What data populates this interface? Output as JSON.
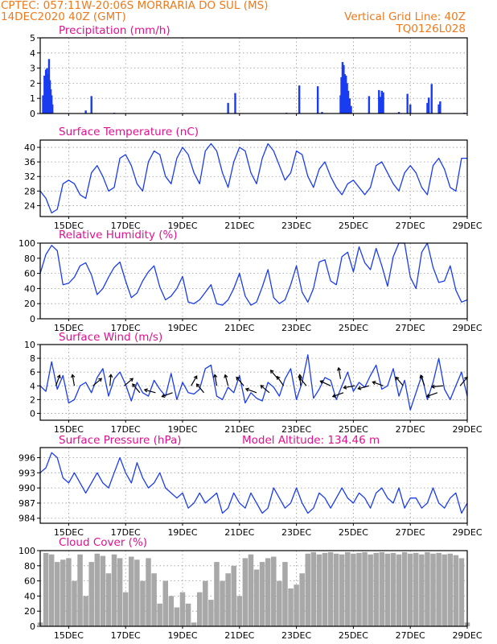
{
  "header": {
    "line1": "CPTEC:  057:11W-20:06S  MORRARIA DO SUL (MS)",
    "line2": "14DEC2020 40Z (GMT)",
    "grid_note": "Vertical Grid Line: 40Z",
    "code": "TQ0126L028"
  },
  "colors": {
    "header": "#ee7a1d",
    "title": "#e0118f",
    "series": "#1a3cf0",
    "cloud": "#a8a8a8",
    "grid": "#9a9a9a"
  },
  "chart_data": [
    {
      "type": "bar",
      "title": "Precipitation (mm/h)",
      "ylim": [
        0,
        5
      ],
      "yticks": [
        0,
        1,
        2,
        3,
        4,
        5
      ],
      "xlim": [
        14.0,
        29.0
      ],
      "xticks": [
        "15DEC",
        "17DEC",
        "19DEC",
        "21DEC",
        "23DEC",
        "25DEC",
        "27DEC",
        "29DEC"
      ],
      "show_xticks": false,
      "bars": [
        [
          14.1,
          1.2
        ],
        [
          14.15,
          2.5
        ],
        [
          14.2,
          2.9
        ],
        [
          14.24,
          3.0
        ],
        [
          14.28,
          2.6
        ],
        [
          14.31,
          3.6
        ],
        [
          14.34,
          2.2
        ],
        [
          14.37,
          1.6
        ],
        [
          14.4,
          1.2
        ],
        [
          14.43,
          0.6
        ],
        [
          15.6,
          0.2
        ],
        [
          15.8,
          1.15
        ],
        [
          16.6,
          0.05
        ],
        [
          20.6,
          0.7
        ],
        [
          20.85,
          1.35
        ],
        [
          22.65,
          0.05
        ],
        [
          23.1,
          1.85
        ],
        [
          23.75,
          1.8
        ],
        [
          23.9,
          0.1
        ],
        [
          24.55,
          1.2
        ],
        [
          24.58,
          2.4
        ],
        [
          24.62,
          3.4
        ],
        [
          24.66,
          3.2
        ],
        [
          24.7,
          2.6
        ],
        [
          24.74,
          2.5
        ],
        [
          24.78,
          2.0
        ],
        [
          24.82,
          1.5
        ],
        [
          24.87,
          1.0
        ],
        [
          24.92,
          0.5
        ],
        [
          25.55,
          1.15
        ],
        [
          25.9,
          1.55
        ],
        [
          25.95,
          1.1
        ],
        [
          26.0,
          1.5
        ],
        [
          26.05,
          1.4
        ],
        [
          26.6,
          0.1
        ],
        [
          26.9,
          1.3
        ],
        [
          27.0,
          0.6
        ],
        [
          27.6,
          0.7
        ],
        [
          27.65,
          1.05
        ],
        [
          27.75,
          1.95
        ],
        [
          28.0,
          0.6
        ],
        [
          28.05,
          0.8
        ],
        [
          28.9,
          0.05
        ]
      ]
    },
    {
      "type": "line",
      "title": "Surface Temperature (nC)",
      "ylim": [
        21,
        42
      ],
      "yticks": [
        24,
        28,
        32,
        36,
        40
      ],
      "xlim": [
        14.0,
        29.0
      ],
      "xticks": [
        "15DEC",
        "17DEC",
        "19DEC",
        "21DEC",
        "23DEC",
        "25DEC",
        "27DEC",
        "29DEC"
      ],
      "x": [
        14.0,
        14.2,
        14.4,
        14.6,
        14.8,
        15.0,
        15.2,
        15.4,
        15.6,
        15.8,
        16.0,
        16.2,
        16.4,
        16.6,
        16.8,
        17.0,
        17.2,
        17.4,
        17.6,
        17.8,
        18.0,
        18.2,
        18.4,
        18.6,
        18.8,
        19.0,
        19.2,
        19.4,
        19.6,
        19.8,
        20.0,
        20.2,
        20.4,
        20.6,
        20.8,
        21.0,
        21.2,
        21.4,
        21.6,
        21.8,
        22.0,
        22.2,
        22.4,
        22.6,
        22.8,
        23.0,
        23.2,
        23.4,
        23.6,
        23.8,
        24.0,
        24.2,
        24.4,
        24.6,
        24.8,
        25.0,
        25.2,
        25.4,
        25.6,
        25.8,
        26.0,
        26.2,
        26.4,
        26.6,
        26.8,
        27.0,
        27.2,
        27.4,
        27.6,
        27.8,
        28.0,
        28.2,
        28.4,
        28.6,
        28.8,
        29.0
      ],
      "y": [
        28,
        26,
        22,
        23,
        30,
        31,
        30,
        27,
        26,
        33,
        35,
        32,
        28,
        29,
        37,
        38,
        35,
        30,
        28,
        36,
        39,
        38,
        32,
        30,
        37,
        40,
        38,
        33,
        30,
        39,
        41,
        39,
        33,
        29,
        36,
        40,
        39,
        33,
        30,
        37,
        41,
        39,
        35,
        31,
        33,
        39,
        38,
        32,
        29,
        34,
        36,
        32,
        29,
        27,
        30,
        31,
        29,
        27,
        29,
        35,
        36,
        33,
        30,
        28,
        33,
        35,
        33,
        29,
        27,
        35,
        37,
        34,
        29,
        28,
        37,
        37
      ]
    },
    {
      "type": "line",
      "title": "Relative Humidity (%)",
      "ylim": [
        0,
        100
      ],
      "yticks": [
        0,
        20,
        40,
        60,
        80,
        100
      ],
      "xlim": [
        14.0,
        29.0
      ],
      "xticks": [
        "15DEC",
        "17DEC",
        "19DEC",
        "21DEC",
        "23DEC",
        "25DEC",
        "27DEC",
        "29DEC"
      ],
      "x": [
        14.0,
        14.2,
        14.4,
        14.6,
        14.8,
        15.0,
        15.2,
        15.4,
        15.6,
        15.8,
        16.0,
        16.2,
        16.4,
        16.6,
        16.8,
        17.0,
        17.2,
        17.4,
        17.6,
        17.8,
        18.0,
        18.2,
        18.4,
        18.6,
        18.8,
        19.0,
        19.2,
        19.4,
        19.6,
        19.8,
        20.0,
        20.2,
        20.4,
        20.6,
        20.8,
        21.0,
        21.2,
        21.4,
        21.6,
        21.8,
        22.0,
        22.2,
        22.4,
        22.6,
        22.8,
        23.0,
        23.2,
        23.4,
        23.6,
        23.8,
        24.0,
        24.2,
        24.4,
        24.6,
        24.8,
        25.0,
        25.2,
        25.4,
        25.6,
        25.8,
        26.0,
        26.2,
        26.4,
        26.6,
        26.8,
        27.0,
        27.2,
        27.4,
        27.6,
        27.8,
        28.0,
        28.2,
        28.4,
        28.6,
        28.8,
        29.0
      ],
      "y": [
        60,
        85,
        97,
        90,
        45,
        47,
        55,
        70,
        74,
        58,
        32,
        40,
        55,
        68,
        75,
        50,
        28,
        34,
        50,
        62,
        70,
        42,
        25,
        30,
        40,
        56,
        22,
        20,
        25,
        35,
        45,
        20,
        18,
        25,
        40,
        60,
        30,
        18,
        22,
        42,
        65,
        28,
        20,
        25,
        45,
        70,
        35,
        22,
        40,
        75,
        78,
        50,
        45,
        82,
        88,
        62,
        95,
        74,
        65,
        93,
        70,
        43,
        82,
        100,
        100,
        55,
        40,
        88,
        100,
        68,
        48,
        50,
        70,
        38,
        22,
        25
      ]
    },
    {
      "type": "line",
      "title": "Surface Wind (m/s)",
      "ylim": [
        -1,
        10
      ],
      "yticks": [
        0,
        2,
        4,
        6,
        8,
        10
      ],
      "xlim": [
        14.0,
        29.0
      ],
      "xticks": [
        "15DEC",
        "17DEC",
        "19DEC",
        "21DEC",
        "23DEC",
        "25DEC",
        "27DEC",
        "29DEC"
      ],
      "x": [
        14.0,
        14.2,
        14.4,
        14.6,
        14.8,
        15.0,
        15.2,
        15.4,
        15.6,
        15.8,
        16.0,
        16.2,
        16.4,
        16.6,
        16.8,
        17.0,
        17.2,
        17.4,
        17.6,
        17.8,
        18.0,
        18.2,
        18.4,
        18.6,
        18.8,
        19.0,
        19.2,
        19.4,
        19.6,
        19.8,
        20.0,
        20.2,
        20.4,
        20.6,
        20.8,
        21.0,
        21.2,
        21.4,
        21.6,
        21.8,
        22.0,
        22.2,
        22.4,
        22.6,
        22.8,
        23.0,
        23.2,
        23.4,
        23.6,
        23.8,
        24.0,
        24.2,
        24.4,
        24.6,
        24.8,
        25.0,
        25.2,
        25.4,
        25.6,
        25.8,
        26.0,
        26.2,
        26.4,
        26.6,
        26.8,
        27.0,
        27.2,
        27.4,
        27.6,
        27.8,
        28.0,
        28.2,
        28.4,
        28.6,
        28.8,
        29.0
      ],
      "y": [
        4,
        3.2,
        7.5,
        3.5,
        5.5,
        1.5,
        2.0,
        4.0,
        4.5,
        3.0,
        5.2,
        6.5,
        2.5,
        5.0,
        6.0,
        4.2,
        1.8,
        4.5,
        3.0,
        2.5,
        4.8,
        3.5,
        2.5,
        5.8,
        2.0,
        4.5,
        3.0,
        2.8,
        3.5,
        6.5,
        7.0,
        2.5,
        2.0,
        3.8,
        3.0,
        5.5,
        1.5,
        3.0,
        2.2,
        1.8,
        4.5,
        3.8,
        2.5,
        5.0,
        6.5,
        2.0,
        4.5,
        8.5,
        2.2,
        3.5,
        5.2,
        4.8,
        2.0,
        4.0,
        6.0,
        3.2,
        4.5,
        3.8,
        5.5,
        7.0,
        3.5,
        4.0,
        6.5,
        2.5,
        4.8,
        0.5,
        3.0,
        5.5,
        2.0,
        4.5,
        8.0,
        3.5,
        2.0,
        4.0,
        6.0,
        2.5
      ],
      "arrows": [
        [
          14.55,
          -70,
          4
        ],
        [
          15.2,
          -100,
          4
        ],
        [
          15.85,
          -40,
          4
        ],
        [
          16.45,
          -85,
          4
        ],
        [
          16.95,
          -40,
          4
        ],
        [
          17.5,
          -130,
          3
        ],
        [
          18.05,
          -165,
          3
        ],
        [
          18.65,
          160,
          3
        ],
        [
          19.3,
          -60,
          4
        ],
        [
          19.75,
          -130,
          3
        ],
        [
          20.2,
          -100,
          4
        ],
        [
          20.6,
          -105,
          4
        ],
        [
          21.15,
          -130,
          4
        ],
        [
          21.6,
          -160,
          3
        ],
        [
          22.05,
          -140,
          3
        ],
        [
          22.35,
          -130,
          5
        ],
        [
          22.55,
          -125,
          4
        ],
        [
          23.15,
          -95,
          4
        ],
        [
          23.35,
          -130,
          4
        ],
        [
          24.2,
          -155,
          4
        ],
        [
          24.55,
          -100,
          5
        ],
        [
          24.65,
          160,
          3
        ],
        [
          25.05,
          170,
          4
        ],
        [
          25.55,
          165,
          4
        ],
        [
          26.05,
          -160,
          4
        ],
        [
          26.75,
          -130,
          4
        ],
        [
          27.5,
          -110,
          4
        ],
        [
          27.95,
          160,
          3
        ],
        [
          28.15,
          175,
          4
        ],
        [
          28.75,
          -50,
          4
        ]
      ]
    },
    {
      "type": "line",
      "title": "Surface Pressure (hPa)",
      "annotation": "Model Altitude: 134.46 m",
      "ylim": [
        983,
        998
      ],
      "yticks": [
        984,
        987,
        990,
        993,
        996
      ],
      "xlim": [
        14.0,
        29.0
      ],
      "xticks": [
        "15DEC",
        "17DEC",
        "19DEC",
        "21DEC",
        "23DEC",
        "25DEC",
        "27DEC",
        "29DEC"
      ],
      "x": [
        14.0,
        14.2,
        14.4,
        14.6,
        14.8,
        15.0,
        15.2,
        15.4,
        15.6,
        15.8,
        16.0,
        16.2,
        16.4,
        16.6,
        16.8,
        17.0,
        17.2,
        17.4,
        17.6,
        17.8,
        18.0,
        18.2,
        18.4,
        18.6,
        18.8,
        19.0,
        19.2,
        19.4,
        19.6,
        19.8,
        20.0,
        20.2,
        20.4,
        20.6,
        20.8,
        21.0,
        21.2,
        21.4,
        21.6,
        21.8,
        22.0,
        22.2,
        22.4,
        22.6,
        22.8,
        23.0,
        23.2,
        23.4,
        23.6,
        23.8,
        24.0,
        24.2,
        24.4,
        24.6,
        24.8,
        25.0,
        25.2,
        25.4,
        25.6,
        25.8,
        26.0,
        26.2,
        26.4,
        26.6,
        26.8,
        27.0,
        27.2,
        27.4,
        27.6,
        27.8,
        28.0,
        28.2,
        28.4,
        28.6,
        28.8,
        29.0
      ],
      "y": [
        993,
        994,
        997,
        996,
        992,
        991,
        993,
        991,
        989,
        991,
        993,
        991,
        990,
        993,
        996,
        993,
        991,
        995,
        992,
        990,
        991,
        993,
        990,
        989,
        988,
        989,
        986,
        987,
        989,
        987,
        988,
        989,
        985,
        986,
        989,
        987,
        986,
        989,
        987,
        985,
        986,
        990,
        988,
        986,
        987,
        990,
        987,
        985,
        986,
        989,
        988,
        986,
        988,
        990,
        988,
        987,
        989,
        988,
        986,
        989,
        990,
        988,
        987,
        990,
        986,
        988,
        988,
        986,
        987,
        990,
        987,
        986,
        988,
        989,
        985,
        987
      ]
    },
    {
      "type": "bar",
      "title": "Cloud Cover (%)",
      "ylim": [
        0,
        100
      ],
      "yticks": [
        0,
        20,
        40,
        60,
        80,
        100
      ],
      "xlim": [
        14.0,
        29.0
      ],
      "xticks": [
        "15DEC",
        "17DEC",
        "19DEC",
        "21DEC",
        "23DEC",
        "25DEC",
        "27DEC",
        "29DEC"
      ],
      "show_xticks": true,
      "x": [
        14.0,
        14.2,
        14.4,
        14.6,
        14.8,
        15.0,
        15.2,
        15.4,
        15.6,
        15.8,
        16.0,
        16.2,
        16.4,
        16.6,
        16.8,
        17.0,
        17.2,
        17.4,
        17.6,
        17.8,
        18.0,
        18.2,
        18.4,
        18.6,
        18.8,
        19.0,
        19.2,
        19.4,
        19.6,
        19.8,
        20.0,
        20.2,
        20.4,
        20.6,
        20.8,
        21.0,
        21.2,
        21.4,
        21.6,
        21.8,
        22.0,
        22.2,
        22.4,
        22.6,
        22.8,
        23.0,
        23.2,
        23.4,
        23.6,
        23.8,
        24.0,
        24.2,
        24.4,
        24.6,
        24.8,
        25.0,
        25.2,
        25.4,
        25.6,
        25.8,
        26.0,
        26.2,
        26.4,
        26.6,
        26.8,
        27.0,
        27.2,
        27.4,
        27.6,
        27.8,
        28.0,
        28.2,
        28.4,
        28.6,
        28.8,
        29.0
      ],
      "values": [
        5,
        97,
        95,
        85,
        88,
        90,
        60,
        95,
        40,
        85,
        96,
        93,
        70,
        95,
        90,
        45,
        92,
        88,
        60,
        90,
        70,
        30,
        60,
        40,
        25,
        45,
        30,
        5,
        45,
        60,
        35,
        85,
        60,
        70,
        80,
        40,
        90,
        95,
        75,
        85,
        90,
        92,
        60,
        85,
        50,
        55,
        70,
        96,
        98,
        95,
        97,
        98,
        96,
        95,
        98,
        96,
        97,
        98,
        95,
        97,
        98,
        96,
        97,
        95,
        98,
        96,
        97,
        95,
        98,
        96,
        97,
        95,
        96,
        94,
        90,
        5
      ]
    }
  ]
}
